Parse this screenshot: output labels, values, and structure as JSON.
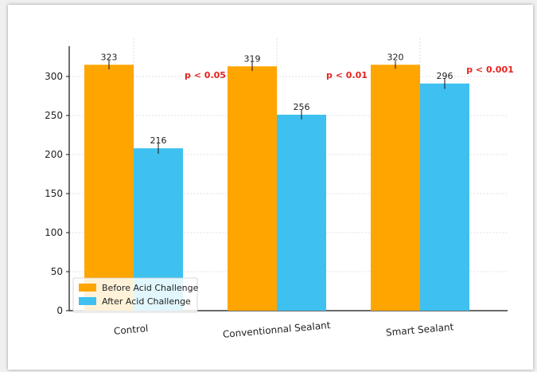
{
  "chart_data": {
    "type": "bar",
    "categories": [
      "Control",
      "Conventionnal Sealant",
      "Smart Sealant"
    ],
    "series": [
      {
        "name": "Before Acid Challenge",
        "values": [
          323,
          319,
          320
        ],
        "error": [
          6,
          6,
          5
        ],
        "color": "#FFA500"
      },
      {
        "name": "After Acid Challenge",
        "values": [
          216,
          256,
          296
        ],
        "error": [
          7,
          6,
          7
        ],
        "color": "#3EC1F0"
      }
    ],
    "display_heights": {
      "Before Acid Challenge": [
        315,
        313,
        315
      ],
      "After Acid Challenge": [
        208,
        251,
        291
      ]
    },
    "annotations": [
      "p < 0.05",
      "p < 0.01",
      "p < 0.001"
    ],
    "yticks": [
      0,
      50,
      100,
      150,
      200,
      250,
      300
    ],
    "ylim": [
      0,
      338
    ],
    "grid": true,
    "legend_position": "lower-left",
    "title": "",
    "xlabel": "",
    "ylabel": ""
  }
}
